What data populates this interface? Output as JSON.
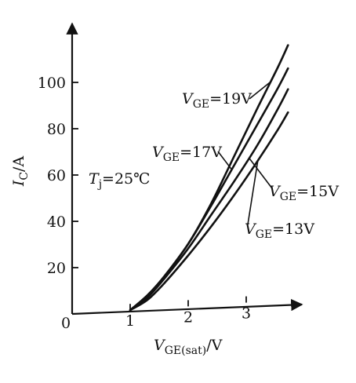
{
  "chart_data": {
    "type": "line",
    "title": "",
    "xlabel": {
      "base": "V",
      "sub": "GE(sat)",
      "unit": "/V"
    },
    "ylabel": {
      "base": "I",
      "sub": "C",
      "unit": "/A"
    },
    "origin_label": "0",
    "xlim": [
      0,
      3.95
    ],
    "ylim": [
      0,
      115
    ],
    "x_ticks": [
      1,
      2,
      3
    ],
    "x_tick_labels": [
      "1",
      "2",
      "3"
    ],
    "y_ticks": [
      20,
      40,
      60,
      80,
      100
    ],
    "y_tick_labels": [
      "20",
      "40",
      "60",
      "80",
      "100"
    ],
    "grid": false,
    "annotation": {
      "base": "T",
      "sub": "j",
      "text": "=25℃"
    },
    "series": [
      {
        "label_base": "V",
        "label_sub": "GE",
        "label_value": "=19V",
        "x": [
          1.0,
          1.3,
          1.6,
          2.0,
          2.4,
          2.8,
          3.2,
          3.55,
          3.72
        ],
        "y": [
          0,
          6,
          14,
          27,
          44,
          64,
          84,
          101,
          110
        ]
      },
      {
        "label_base": "V",
        "label_sub": "GE",
        "label_value": "=17V",
        "x": [
          1.0,
          1.3,
          1.6,
          2.0,
          2.4,
          2.8,
          3.2,
          3.55,
          3.72
        ],
        "y": [
          0,
          6,
          14,
          27,
          43,
          60,
          77,
          92,
          100
        ]
      },
      {
        "label_base": "V",
        "label_sub": "GE",
        "label_value": "=15V",
        "x": [
          1.0,
          1.3,
          1.6,
          2.0,
          2.4,
          2.8,
          3.2,
          3.55,
          3.72
        ],
        "y": [
          0,
          5,
          13,
          25,
          39,
          53,
          68,
          83,
          91
        ]
      },
      {
        "label_base": "V",
        "label_sub": "GE",
        "label_value": "=13V",
        "x": [
          1.0,
          1.3,
          1.6,
          2.0,
          2.4,
          2.8,
          3.2,
          3.55,
          3.72
        ],
        "y": [
          0,
          4,
          11,
          22,
          34,
          47,
          61,
          74,
          81
        ]
      }
    ]
  }
}
